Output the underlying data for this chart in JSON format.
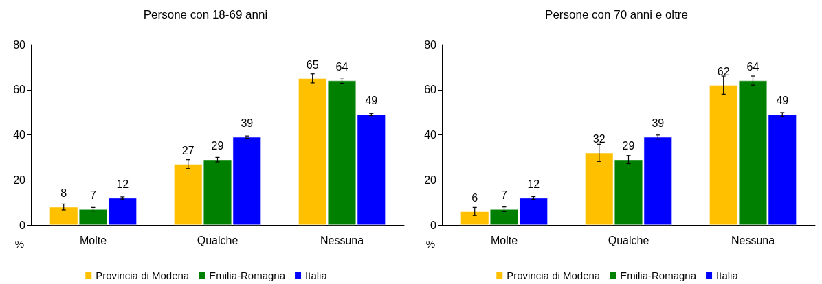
{
  "chart_data": [
    {
      "type": "bar",
      "title": "Persone con 18-69 anni",
      "ylabel": "%",
      "categories": [
        "Molte",
        "Qualche",
        "Nessuna"
      ],
      "series": [
        {
          "name": "Provincia di Modena",
          "color": "#ffc000",
          "values": [
            8,
            27,
            65
          ],
          "errors": [
            1.3,
            2,
            2
          ]
        },
        {
          "name": "Emilia-Romagna",
          "color": "#008000",
          "values": [
            7,
            29,
            64
          ],
          "errors": [
            0.8,
            1,
            1.2
          ]
        },
        {
          "name": "Italia",
          "color": "#0000ff",
          "values": [
            12,
            39,
            49
          ],
          "errors": [
            0.5,
            0.5,
            0.5
          ]
        }
      ],
      "ylim": [
        0,
        80
      ],
      "yticks": [
        0,
        20,
        40,
        60,
        80
      ],
      "grid": false,
      "legend": "bottom",
      "data_labels": true
    },
    {
      "type": "bar",
      "title": "Persone con 70 anni e oltre",
      "ylabel": "%",
      "categories": [
        "Molte",
        "Qualche",
        "Nessuna"
      ],
      "series": [
        {
          "name": "Provincia di Modena",
          "color": "#ffc000",
          "values": [
            6,
            32,
            62
          ],
          "errors": [
            1.8,
            3.8,
            4
          ]
        },
        {
          "name": "Emilia-Romagna",
          "color": "#008000",
          "values": [
            7,
            29,
            64
          ],
          "errors": [
            1,
            1.8,
            2
          ]
        },
        {
          "name": "Italia",
          "color": "#0000ff",
          "values": [
            12,
            39,
            49
          ],
          "errors": [
            0.6,
            0.9,
            0.9
          ]
        }
      ],
      "ylim": [
        0,
        80
      ],
      "yticks": [
        0,
        20,
        40,
        60,
        80
      ],
      "grid": false,
      "legend": "bottom",
      "data_labels": true
    }
  ]
}
